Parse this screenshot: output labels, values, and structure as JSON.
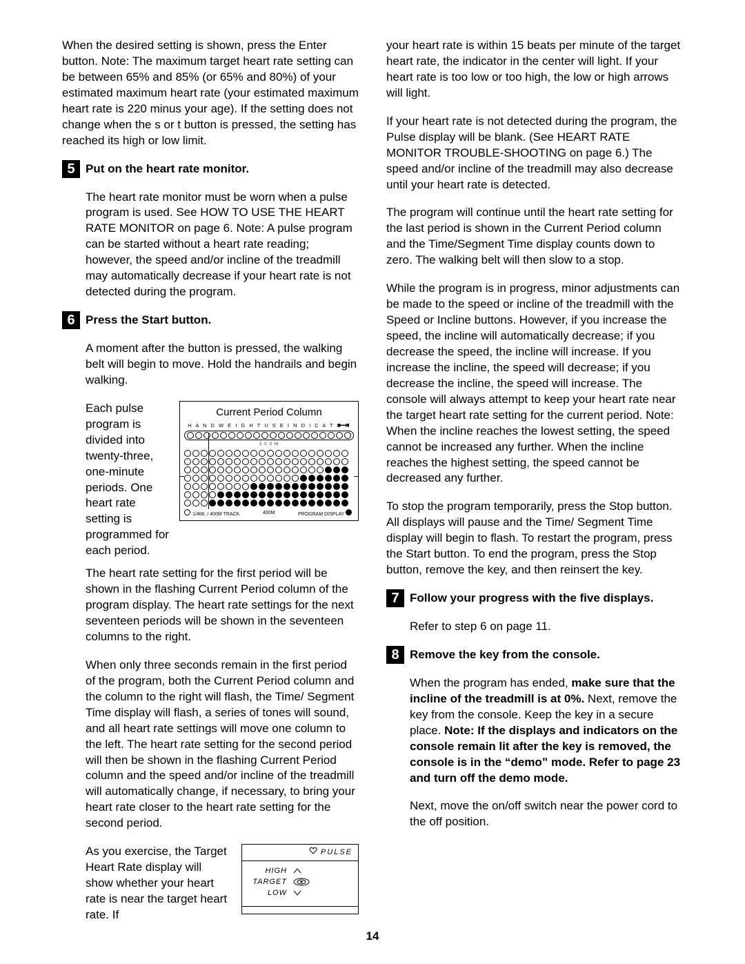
{
  "page_number": "14",
  "left": {
    "intro_para": "When the desired setting is shown, press the Enter button. Note: The maximum target heart rate setting can be between 65% and 85% (or 65% and 80%) of your estimated maximum heart rate (your estimated maximum heart rate is 220 minus your age). If the setting does not change when the  s  or  t  button is pressed, the setting has reached its high or low limit.",
    "step5_num": "5",
    "step5_title": "Put on the heart rate monitor.",
    "step5_para": "The heart rate monitor must be worn when a pulse program is used. See HOW TO USE THE HEART RATE MONITOR on page 6. Note: A pulse program can be started without a heart rate reading; however, the speed and/or incline of the treadmill may automatically decrease if your heart rate is not detected during the program.",
    "step6_num": "6",
    "step6_title": "Press the Start button.",
    "step6_p1": "A moment after the button is pressed, the walking belt will begin to move. Hold the handrails and begin walking.",
    "step6_split_text": "Each pulse program is divided into twenty-three, one-minute periods. One heart rate setting is programmed for each period.",
    "step6_p3": "The heart rate setting for the first period will be shown in the flashing Current Period column of the program display. The heart rate settings for the next seventeen periods will be shown in the seventeen columns to the right.",
    "step6_p4": "When only three seconds remain in the first period of the program, both the Current Period column and the column to the right will flash, the Time/ Segment Time display will flash, a series of tones will sound, and all heart rate settings will move one column to the left. The heart rate setting for the second period will then be shown in the flashing Current Period column and the speed and/or incline of the treadmill will automatically change, if necessary, to bring your heart rate closer to the heart rate setting for the second period.",
    "step6_pulse_text": "As you exercise, the Target Heart Rate display will show whether your heart rate is near the target heart rate. If",
    "prog_diagram": {
      "title": "Current Period Column",
      "hand_label": "H A N D   W E I G H T   U S E   I N D I C A T O R",
      "sublabel": "3 0 0 M",
      "footer_left": "1/4MI. / 400M TRACK",
      "footer_mid": "400M",
      "footer_right": "PROGRAM DISPLAY",
      "cols": 20,
      "rows": 7,
      "vline_col": 2,
      "fill_rows": [
        [],
        [],
        [
          17,
          18,
          19
        ],
        [
          14,
          15,
          16,
          17,
          18,
          19
        ],
        [
          8,
          9,
          10,
          11,
          12,
          13,
          14,
          15,
          16,
          17,
          18,
          19
        ],
        [
          4,
          5,
          6,
          7,
          8,
          9,
          10,
          11,
          12,
          13,
          14,
          15,
          16,
          17,
          18,
          19
        ],
        [
          3,
          4,
          5,
          6,
          7,
          8,
          9,
          10,
          11,
          12,
          13,
          14,
          15,
          16,
          17,
          18,
          19
        ]
      ]
    },
    "pulse_diagram": {
      "header": "PULSE",
      "high": "HIGH",
      "target": "TARGET",
      "low": "LOW"
    }
  },
  "right": {
    "p1": "your heart rate is within 15 beats per minute of the target heart rate, the indicator in the center will light. If your heart rate is too low or too high, the low or high arrows will light.",
    "p2": "If your heart rate is not detected during the program, the Pulse display will be blank. (See HEART RATE MONITOR TROUBLE-SHOOTING on page 6.) The speed and/or incline of the treadmill may also decrease until your heart rate is detected.",
    "p3": "The program will continue until the heart rate setting for the last period is shown in the Current Period column and the Time/Segment Time display counts down to zero. The walking belt will then slow to a stop.",
    "p4": "While the program is in progress, minor adjustments can be made to the speed or incline of the treadmill with the Speed or Incline buttons. However, if you increase the speed, the incline will automatically decrease; if you decrease the speed, the incline will increase. If you increase the incline, the speed will decrease; if you decrease the incline, the speed will increase. The console will always attempt to keep your heart rate near the target heart rate setting for the current period. Note: When the incline reaches the lowest setting, the speed cannot be increased any further. When the incline reaches the highest setting, the speed cannot be decreased any further.",
    "p5": "To stop the program temporarily, press the Stop button. All displays will pause and the Time/ Segment Time display will begin to flash. To restart the program, press the Start button. To end the program, press the Stop button, remove the key, and then reinsert the key.",
    "step7_num": "7",
    "step7_title": "Follow your progress with the five displays.",
    "step7_para": "Refer to step 6 on page 11.",
    "step8_num": "8",
    "step8_title": "Remove the key from the console.",
    "step8_p1a": "When the program has ended, ",
    "step8_p1b": "make sure that the incline of the treadmill is at 0%.",
    "step8_p1c": " Next, remove the key from the console. Keep the key in a secure place. ",
    "step8_p1d": "Note: If the displays and indicators on the console remain lit after the key is removed, the console is in the “demo” mode. Refer to page 23 and turn off the demo mode.",
    "step8_p2": "Next, move the on/off switch near the power cord to the off position."
  }
}
